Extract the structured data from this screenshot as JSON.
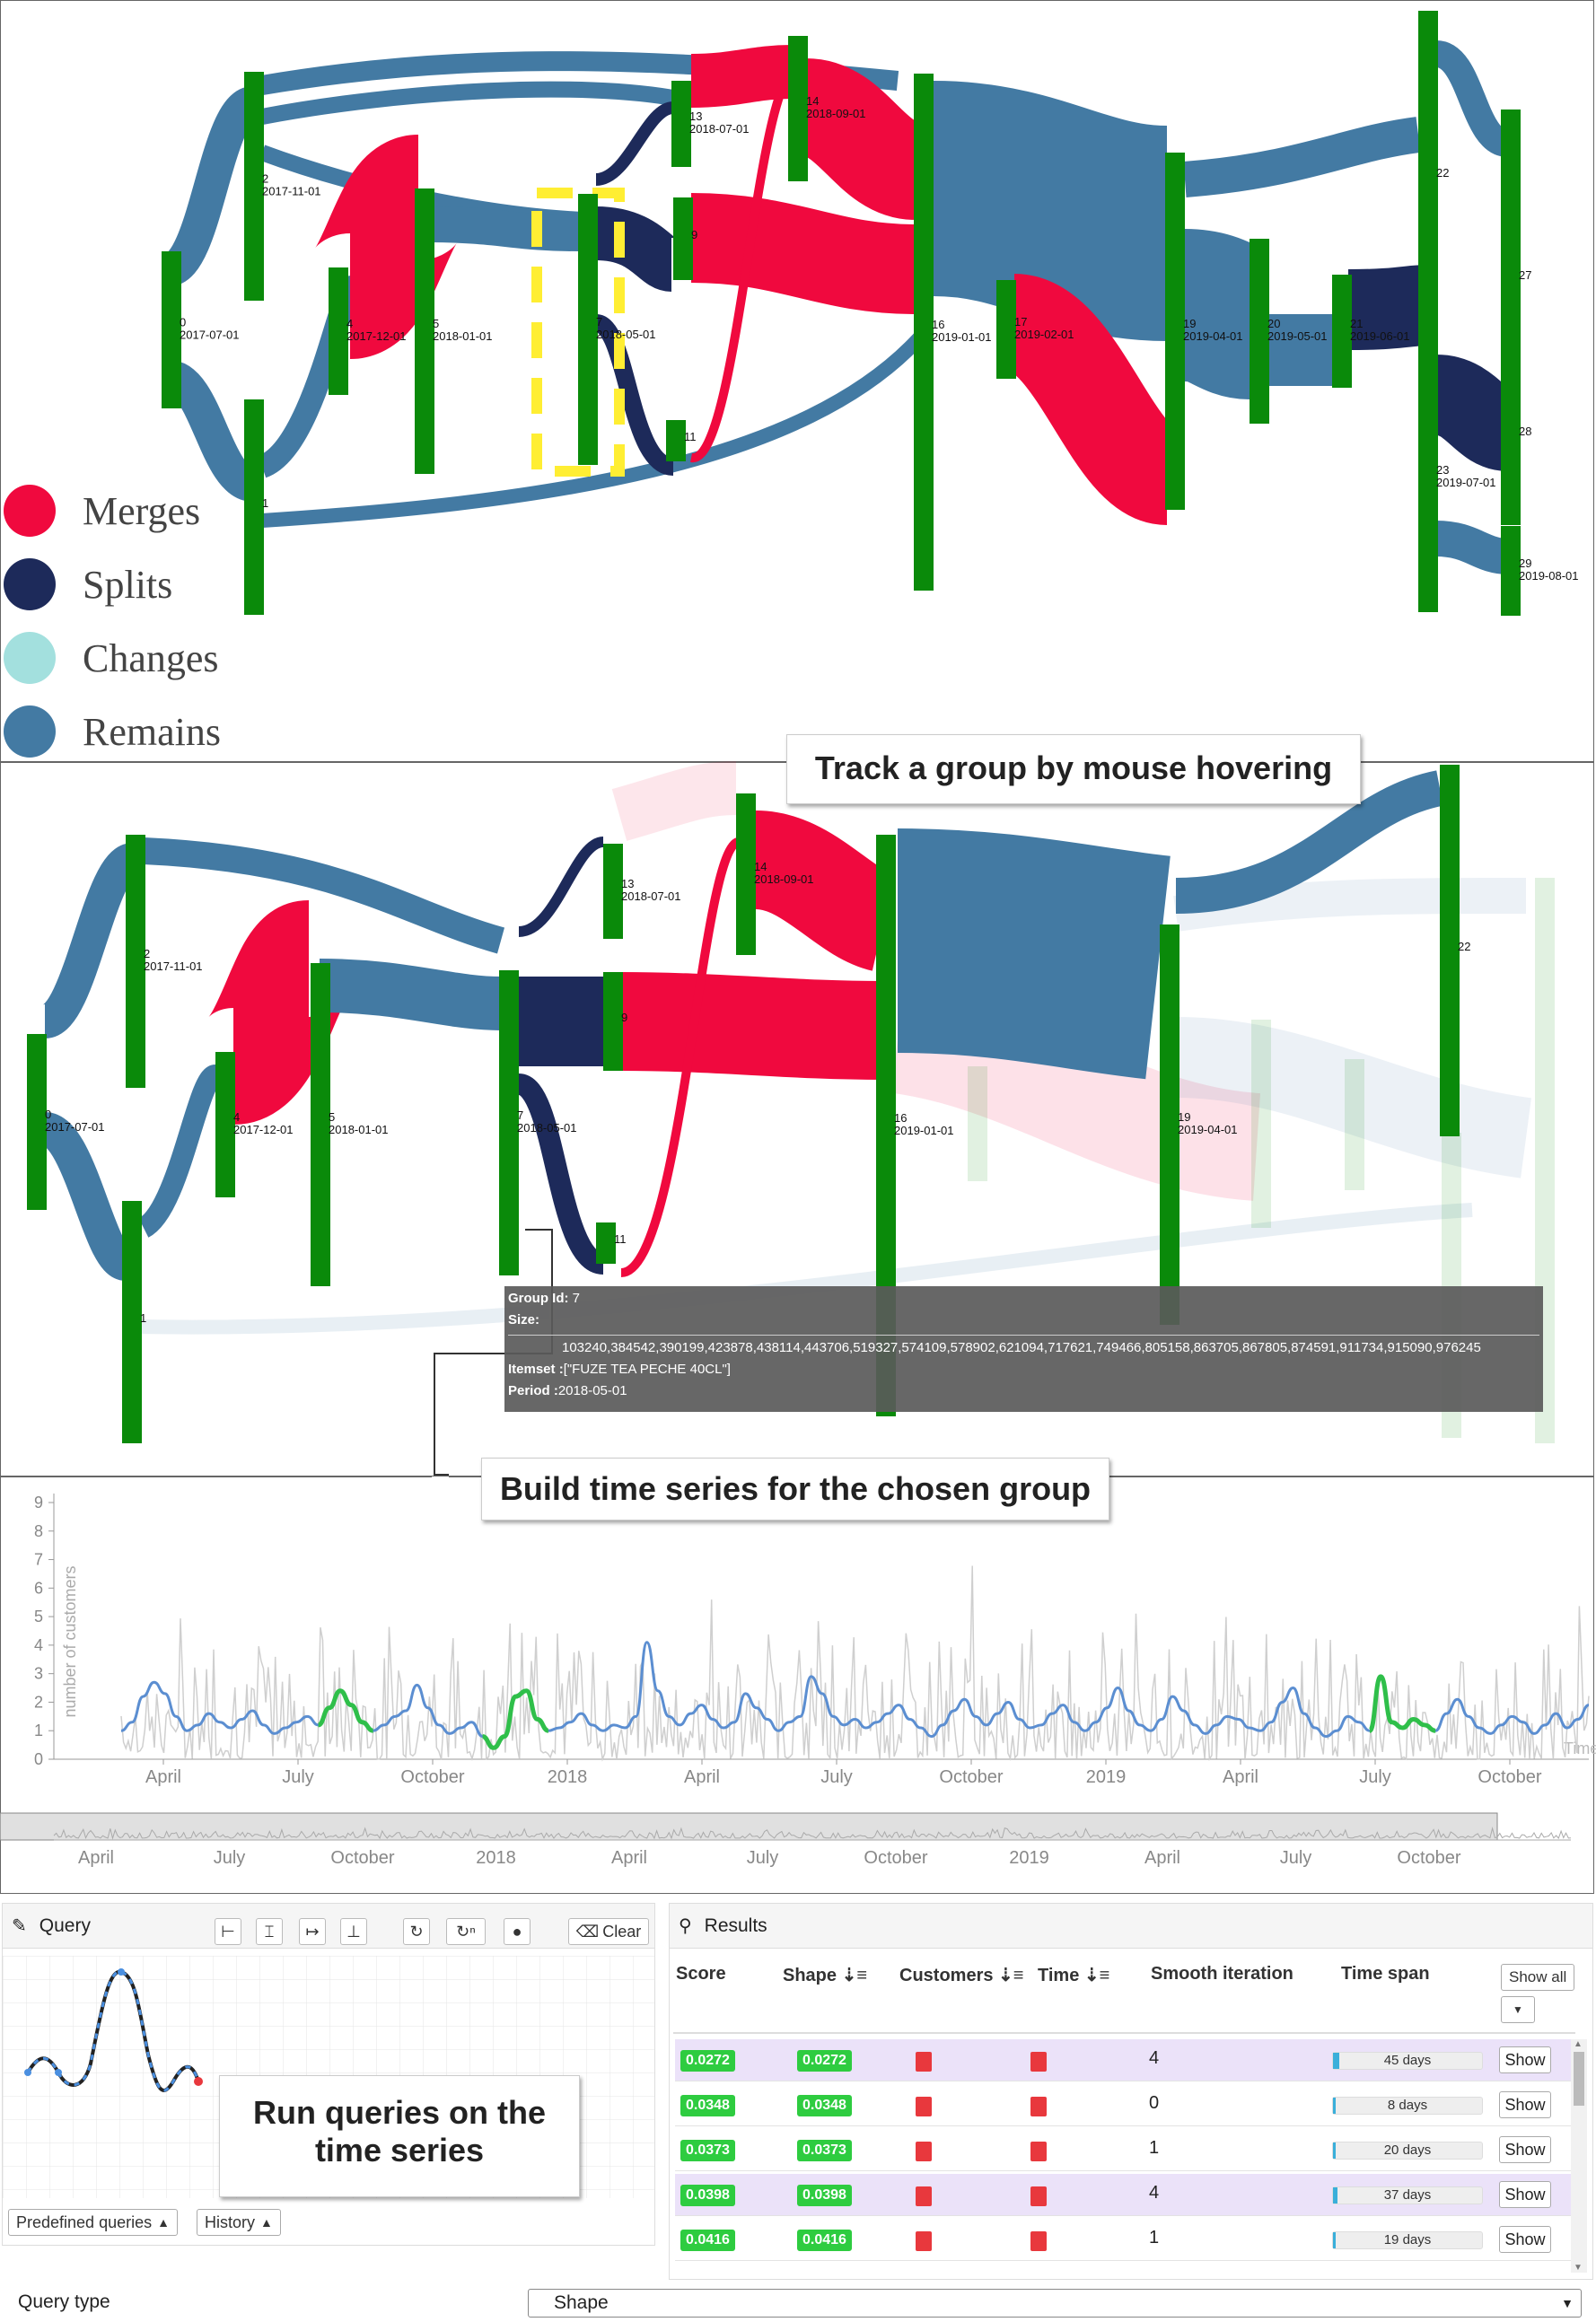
{
  "sankey_top": {
    "nodes": [
      {
        "id": "0",
        "date": "2017-07-01"
      },
      {
        "id": "1",
        "date": ""
      },
      {
        "id": "2",
        "date": "2017-11-01"
      },
      {
        "id": "4",
        "date": "2017-12-01"
      },
      {
        "id": "5",
        "date": "2018-01-01"
      },
      {
        "id": "7",
        "date": "2018-05-01"
      },
      {
        "id": "9",
        "date": ""
      },
      {
        "id": "11",
        "date": ""
      },
      {
        "id": "13",
        "date": "2018-07-01"
      },
      {
        "id": "14",
        "date": "2018-09-01"
      },
      {
        "id": "16",
        "date": "2019-01-01"
      },
      {
        "id": "17",
        "date": "2019-02-01"
      },
      {
        "id": "19",
        "date": "2019-04-01"
      },
      {
        "id": "20",
        "date": "2019-05-01"
      },
      {
        "id": "21",
        "date": "2019-06-01"
      },
      {
        "id": "22",
        "date": ""
      },
      {
        "id": "23",
        "date": "2019-07-01"
      },
      {
        "id": "27",
        "date": ""
      },
      {
        "id": "28",
        "date": ""
      },
      {
        "id": "29",
        "date": "2019-08-01"
      }
    ]
  },
  "legend": [
    {
      "label": "Merges",
      "color": "#f0093e"
    },
    {
      "label": "Splits",
      "color": "#1d2a5a"
    },
    {
      "label": "Changes",
      "color": "#a3e0de"
    },
    {
      "label": "Remains",
      "color": "#437aa3"
    }
  ],
  "colors": {
    "merge": "#f0093e",
    "split": "#1d2a5a",
    "remain": "#437aa3",
    "node": "#0a8a0a",
    "highlight": "#ffee33",
    "series": "#5b8ed1",
    "match": "#2fbf4a"
  },
  "callouts": {
    "track": "Track a group by mouse hovering",
    "build": "Build time series for the chosen group",
    "run": "Run queries on the time series"
  },
  "sankey_bottom": {
    "nodes": [
      {
        "id": "0",
        "date": "2017-07-01"
      },
      {
        "id": "1",
        "date": ""
      },
      {
        "id": "2",
        "date": "2017-11-01"
      },
      {
        "id": "4",
        "date": "2017-12-01"
      },
      {
        "id": "5",
        "date": "2018-01-01"
      },
      {
        "id": "7",
        "date": "2018-05-01"
      },
      {
        "id": "9",
        "date": ""
      },
      {
        "id": "11",
        "date": ""
      },
      {
        "id": "13",
        "date": "2018-07-01"
      },
      {
        "id": "14",
        "date": "2018-09-01"
      },
      {
        "id": "16",
        "date": "2019-01-01"
      },
      {
        "id": "19",
        "date": "2019-04-01"
      },
      {
        "id": "22",
        "date": ""
      }
    ]
  },
  "tooltip": {
    "group_label": "Group Id:",
    "group_value": "7",
    "size_label": "Size:",
    "size_value": "",
    "items_text": "103240,384542,390199,423878,438114,443706,519327,574109,578902,621094,717621,749466,805158,863705,867805,874591,911734,915090,976245",
    "itemset_label": "Itemset :",
    "itemset_value": "[\"FUZE TEA PECHE 40CL\"]",
    "period_label": "Period :",
    "period_value": "2018-05-01"
  },
  "chart_data": {
    "type": "line",
    "ylabel": "number of customers",
    "xlabel": "Time",
    "ylim": [
      0,
      9
    ],
    "yticks": [
      0,
      1,
      2,
      3,
      4,
      5,
      6,
      7,
      8,
      9
    ],
    "xticks": [
      "April",
      "July",
      "October",
      "2018",
      "April",
      "July",
      "October",
      "2019",
      "April",
      "July",
      "October"
    ],
    "overview_ticks": [
      "April",
      "July",
      "October",
      "2018",
      "April",
      "July",
      "October",
      "2019",
      "April",
      "July",
      "October"
    ],
    "series": [
      {
        "values": [
          1.0,
          1.3,
          2.2,
          2.7,
          2.3,
          1.5,
          1.0,
          1.2,
          1.6,
          1.3,
          1.1,
          1.4,
          1.7,
          1.2,
          0.9,
          1.1,
          1.3,
          1.5,
          1.2,
          1.8,
          2.4,
          1.9,
          1.3,
          1.0,
          1.2,
          1.5,
          1.7,
          2.6,
          1.8,
          1.2,
          0.9,
          1.1,
          1.3,
          0.8,
          0.4,
          0.8,
          2.2,
          2.4,
          1.4,
          1.0,
          1.1,
          1.3,
          1.6,
          1.2,
          1.0,
          1.2,
          1.1,
          1.5,
          4.1,
          2.4,
          1.5,
          1.2,
          1.6,
          1.9,
          1.4,
          1.1,
          1.3,
          2.3,
          1.8,
          1.4,
          1.0,
          1.3,
          1.5,
          2.9,
          2.3,
          1.5,
          1.2,
          1.4,
          1.1,
          1.3,
          1.6,
          1.9,
          1.4,
          1.1,
          0.8,
          1.2,
          1.7,
          2.1,
          1.5,
          1.2,
          1.6,
          2.0,
          1.4,
          1.1,
          1.2,
          1.6,
          1.9,
          1.3,
          1.0,
          1.3,
          1.8,
          2.5,
          1.7,
          1.2,
          1.0,
          1.4,
          2.2,
          1.7,
          1.2,
          0.9,
          1.2,
          1.5,
          1.4,
          1.1,
          1.0,
          1.3,
          2.0,
          2.5,
          1.6,
          1.1,
          0.8,
          1.0,
          1.5,
          1.3,
          1.0,
          2.9,
          1.3,
          1.1,
          1.4,
          1.2,
          1.0,
          1.6,
          2.1,
          1.5,
          1.1,
          0.9,
          1.2,
          1.5,
          1.3,
          0.9,
          1.2,
          1.6,
          1.1,
          1.4,
          1.9
        ]
      }
    ]
  },
  "query": {
    "title": "Query",
    "clear_label": "Clear",
    "predefined_label": "Predefined queries",
    "history_label": "History"
  },
  "results": {
    "title": "Results",
    "columns": [
      "Score",
      "Shape",
      "Customers",
      "Time",
      "Smooth iteration",
      "Time span"
    ],
    "show_all_label": "Show all",
    "show_label": "Show",
    "rows": [
      {
        "score": "0.0272",
        "shape": "0.0272",
        "iteration": "4",
        "span": "45 days",
        "span_frac": 0.04,
        "highlight": true
      },
      {
        "score": "0.0348",
        "shape": "0.0348",
        "iteration": "0",
        "span": "8 days",
        "span_frac": 0.01,
        "highlight": false
      },
      {
        "score": "0.0373",
        "shape": "0.0373",
        "iteration": "1",
        "span": "20 days",
        "span_frac": 0.02,
        "highlight": false
      },
      {
        "score": "0.0398",
        "shape": "0.0398",
        "iteration": "4",
        "span": "37 days",
        "span_frac": 0.03,
        "highlight": true
      },
      {
        "score": "0.0416",
        "shape": "0.0416",
        "iteration": "1",
        "span": "19 days",
        "span_frac": 0.02,
        "highlight": false
      }
    ]
  },
  "footer": {
    "query_type_label": "Query type",
    "query_type_value": "Shape"
  }
}
